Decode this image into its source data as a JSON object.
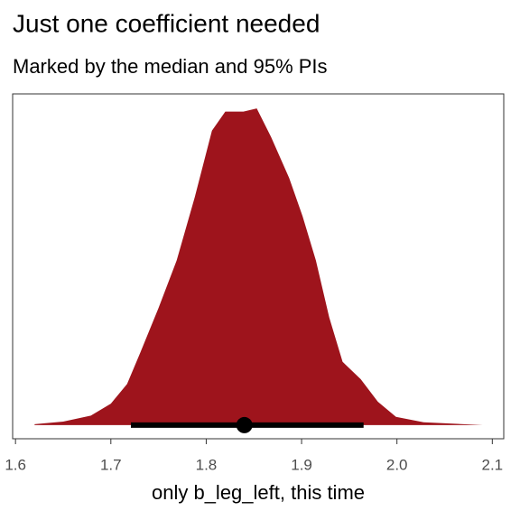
{
  "chart_data": {
    "type": "density",
    "title": "Just one coefficient needed",
    "subtitle": "Marked by the median and 95% PIs",
    "x_label": "only b_leg_left, this time",
    "x": [
      1.62,
      1.65,
      1.679,
      1.7,
      1.717,
      1.731,
      1.75,
      1.769,
      1.788,
      1.806,
      1.82,
      1.839,
      1.853,
      1.868,
      1.887,
      1.901,
      1.915,
      1.929,
      1.943,
      1.962,
      1.98,
      1.999,
      2.028,
      2.09
    ],
    "values": [
      0.003,
      0.011,
      0.03,
      0.068,
      0.13,
      0.23,
      0.37,
      0.52,
      0.72,
      0.93,
      0.99,
      0.99,
      1.0,
      0.91,
      0.78,
      0.66,
      0.52,
      0.34,
      0.2,
      0.145,
      0.074,
      0.026,
      0.009,
      0
    ],
    "color": "#9e141c",
    "interval": {
      "lower": 1.721,
      "median": 1.84,
      "upper": 1.965
    },
    "xlim": [
      1.597,
      2.112
    ],
    "xticks": [
      1.6,
      1.7,
      1.8,
      1.9,
      {
        "value": 2.0,
        "label": "2.0"
      },
      2.1
    ],
    "ylim": [
      -0.043,
      1.046
    ]
  }
}
